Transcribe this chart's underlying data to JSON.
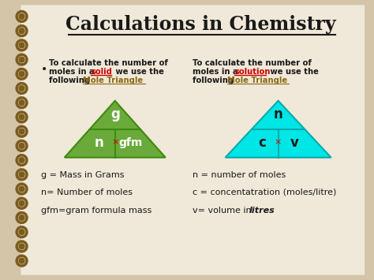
{
  "title": "Calculations in Chemistry",
  "bg_color": "#d4c4a8",
  "slide_bg": "#f0e8d8",
  "title_color": "#1a1a1a",
  "left_triangle_color": "#6aaa3a",
  "right_triangle_color": "#00e5e5",
  "left_triangle_top_label": "g",
  "left_triangle_bot_left": "n",
  "left_triangle_bot_right": "gfm",
  "right_triangle_top_label": "n",
  "right_triangle_bot_left": "c",
  "right_triangle_bot_right": "v",
  "triangle_text_color_left": "#ffffff",
  "triangle_text_color_right": "#1a1a1a",
  "left_notes": [
    "g = Mass in Grams",
    "n= Number of moles",
    "gfm=gram formula mass"
  ],
  "right_notes": [
    "n = number of moles",
    "c = concentatration (moles/litre)",
    "v= volume in litres"
  ],
  "note_text_color": "#1a1a1a",
  "spiral_color": "#7a5c1e",
  "link_color": "#8b6914",
  "red_color": "#cc0000",
  "tri_edge_left": "#3d8a10",
  "tri_edge_right": "#00aaaa"
}
